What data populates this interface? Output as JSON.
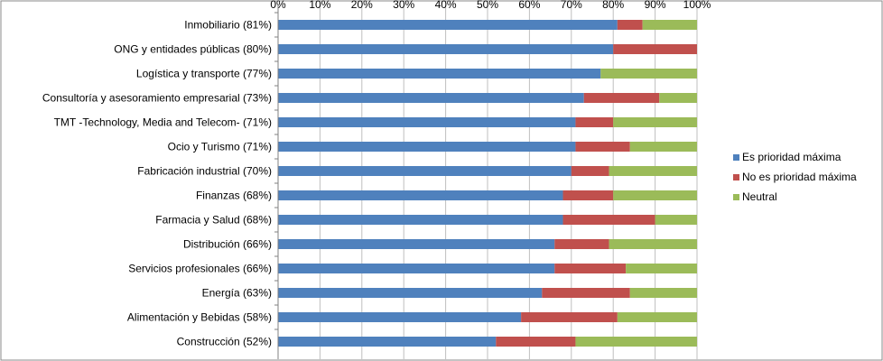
{
  "chart_data": {
    "type": "bar",
    "orientation": "horizontal",
    "stacked": "percent",
    "categories": [
      "Inmobiliario (81%)",
      "ONG y entidades públicas (80%)",
      "Logística y transporte (77%)",
      "Consultoría y asesoramiento empresarial (73%)",
      "TMT -Technology, Media and Telecom- (71%)",
      "Ocio y Turismo (71%)",
      "Fabricación industrial (70%)",
      "Finanzas (68%)",
      "Farmacia y Salud (68%)",
      "Distribución (66%)",
      "Servicios profesionales (66%)",
      "Energía (63%)",
      "Alimentación y Bebidas (58%)",
      "Construcción (52%)"
    ],
    "series": [
      {
        "name": "Es prioridad máxima",
        "color": "#4f81bd",
        "values": [
          81,
          80,
          77,
          73,
          71,
          71,
          70,
          68,
          68,
          66,
          66,
          63,
          58,
          52
        ]
      },
      {
        "name": "No es prioridad máxima",
        "color": "#c0504d",
        "values": [
          6,
          20,
          0,
          18,
          9,
          13,
          9,
          12,
          22,
          13,
          17,
          21,
          23,
          19
        ]
      },
      {
        "name": "Neutral",
        "color": "#9bbb59",
        "values": [
          13,
          0,
          23,
          9,
          20,
          16,
          21,
          20,
          10,
          21,
          17,
          16,
          19,
          29
        ]
      }
    ],
    "x_ticks": [
      "0%",
      "10%",
      "20%",
      "30%",
      "40%",
      "50%",
      "60%",
      "70%",
      "80%",
      "90%",
      "100%"
    ],
    "xlim": [
      0,
      100
    ],
    "grid": true,
    "legend_position": "right",
    "title": "",
    "xlabel": "",
    "ylabel": ""
  }
}
